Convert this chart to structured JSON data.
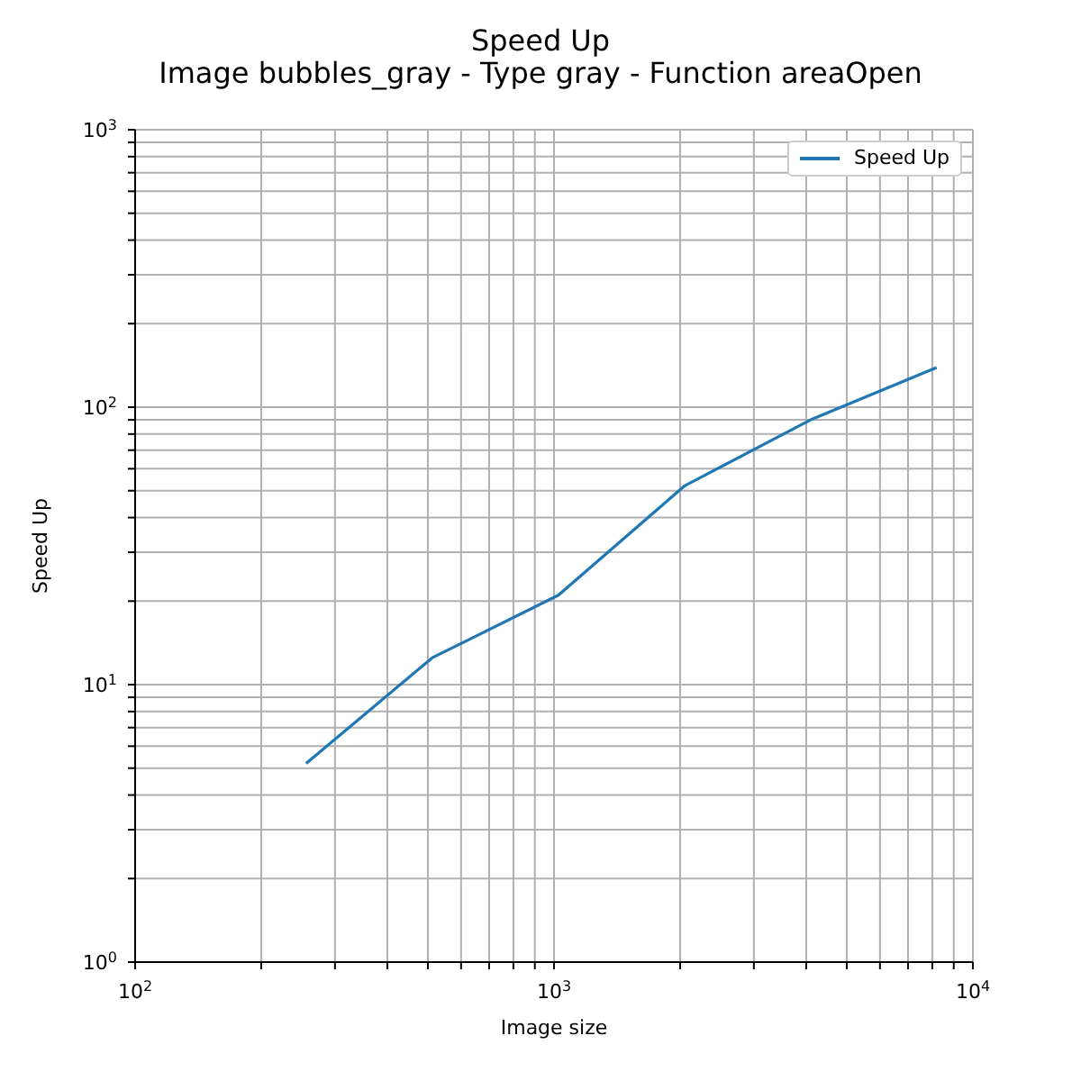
{
  "chart_data": {
    "type": "line",
    "title": "Speed Up",
    "subtitle": "Image bubbles_gray - Type gray - Function areaOpen",
    "xlabel": "Image size",
    "ylabel": "Speed Up",
    "x": [
      256,
      512,
      1024,
      2048,
      4096,
      8192
    ],
    "series": [
      {
        "name": "Speed Up",
        "color": "#1f77b4",
        "values": [
          5.2,
          12.5,
          21,
          52,
          90,
          139
        ]
      }
    ],
    "log": "xy",
    "xlim": [
      100,
      10000
    ],
    "ylim": [
      1,
      1000
    ],
    "xticks": [
      {
        "value": 100,
        "label": "10$^{2}$"
      },
      {
        "value": 200,
        "label": null
      },
      {
        "value": 300,
        "label": null
      },
      {
        "value": 400,
        "label": null
      },
      {
        "value": 500,
        "label": null
      },
      {
        "value": 600,
        "label": null
      },
      {
        "value": 700,
        "label": null
      },
      {
        "value": 800,
        "label": null
      },
      {
        "value": 900,
        "label": null
      },
      {
        "value": 1000,
        "label": "10$^{3}$"
      },
      {
        "value": 2000,
        "label": null
      },
      {
        "value": 3000,
        "label": null
      },
      {
        "value": 4000,
        "label": null
      },
      {
        "value": 5000,
        "label": null
      },
      {
        "value": 6000,
        "label": null
      },
      {
        "value": 7000,
        "label": null
      },
      {
        "value": 8000,
        "label": null
      },
      {
        "value": 9000,
        "label": null
      },
      {
        "value": 10000,
        "label": "10$^{4}$"
      }
    ],
    "yticks": [
      {
        "value": 1,
        "label": "10$^{0}$"
      },
      {
        "value": 2,
        "label": null
      },
      {
        "value": 3,
        "label": null
      },
      {
        "value": 4,
        "label": null
      },
      {
        "value": 5,
        "label": null
      },
      {
        "value": 6,
        "label": null
      },
      {
        "value": 7,
        "label": null
      },
      {
        "value": 8,
        "label": null
      },
      {
        "value": 9,
        "label": null
      },
      {
        "value": 10,
        "label": "10$^{1}$"
      },
      {
        "value": 20,
        "label": null
      },
      {
        "value": 30,
        "label": null
      },
      {
        "value": 40,
        "label": null
      },
      {
        "value": 50,
        "label": null
      },
      {
        "value": 60,
        "label": null
      },
      {
        "value": 70,
        "label": null
      },
      {
        "value": 80,
        "label": null
      },
      {
        "value": 90,
        "label": null
      },
      {
        "value": 100,
        "label": "10$^{2}$"
      },
      {
        "value": 200,
        "label": null
      },
      {
        "value": 300,
        "label": null
      },
      {
        "value": 400,
        "label": null
      },
      {
        "value": 500,
        "label": null
      },
      {
        "value": 600,
        "label": null
      },
      {
        "value": 700,
        "label": null
      },
      {
        "value": 800,
        "label": null
      },
      {
        "value": 900,
        "label": null
      },
      {
        "value": 1000,
        "label": "10$^{3}$"
      }
    ],
    "grid": true,
    "legend": "top right",
    "marker": "none",
    "line_style": "solid"
  }
}
